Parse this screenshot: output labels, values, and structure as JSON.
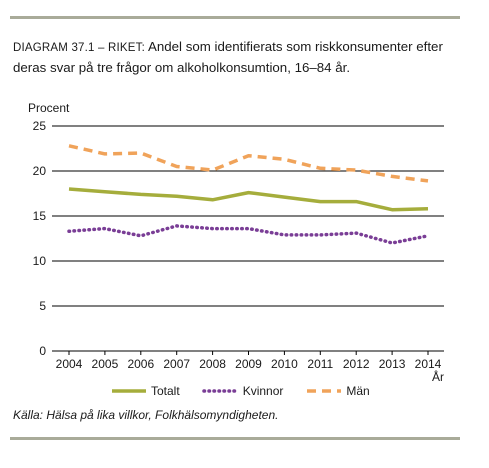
{
  "title_prefix": "DIAGRAM 37.1 – RIKET:",
  "title_text": "Andel som identifierats som riskkonsumenter efter deras svar på tre frågor om alkoholkonsumtion, 16–84 år.",
  "source": "Källa: Hälsa på lika villkor, Folkhälsomyndigheten.",
  "colors": {
    "frame_rule": "#a9ab99",
    "totalt": "#a5ad3c",
    "kvinnor": "#7a3e96",
    "man": "#f0a35a"
  },
  "chart_data": {
    "type": "line",
    "title": "DIAGRAM 37.1 – RIKET: Andel som identifierats som riskkonsumenter efter deras svar på tre frågor om alkoholkonsumtion, 16–84 år.",
    "ylabel": "Procent",
    "xlabel": "År",
    "ylim": [
      0,
      25
    ],
    "yticks": [
      0,
      5,
      10,
      15,
      20,
      25
    ],
    "grid": true,
    "legend_position": "bottom",
    "x": [
      "2004",
      "2005",
      "2006",
      "2007",
      "2008",
      "2009",
      "2010",
      "2011",
      "2012",
      "2013",
      "2014"
    ],
    "series": [
      {
        "name": "Totalt",
        "style": "solid",
        "values": [
          18.0,
          17.7,
          17.4,
          17.2,
          16.8,
          17.6,
          17.1,
          16.6,
          16.6,
          15.7,
          15.8
        ]
      },
      {
        "name": "Kvinnor",
        "style": "dotted",
        "values": [
          13.3,
          13.6,
          12.8,
          13.9,
          13.6,
          13.6,
          12.9,
          12.9,
          13.1,
          12.0,
          12.8
        ]
      },
      {
        "name": "Män",
        "style": "dashed",
        "values": [
          22.8,
          21.9,
          22.0,
          20.5,
          20.1,
          21.7,
          21.3,
          20.3,
          20.1,
          19.4,
          18.9
        ]
      }
    ]
  }
}
